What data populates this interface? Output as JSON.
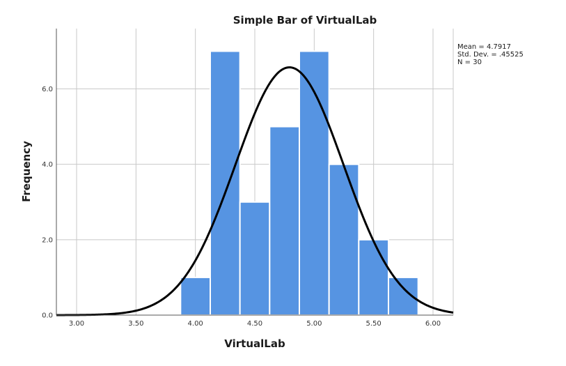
{
  "chart_data": {
    "type": "bar",
    "title": "Simple Bar of VirtualLab",
    "xlabel": "VirtualLab",
    "ylabel": "Frequency",
    "xlim": [
      2.83,
      6.17
    ],
    "ylim": [
      0,
      7.6
    ],
    "x_ticks": [
      "3.00",
      "3.50",
      "4.00",
      "4.50",
      "5.00",
      "5.50",
      "6.00"
    ],
    "y_ticks": [
      "0.0",
      "2.0",
      "4.0",
      "6.0"
    ],
    "bin_width": 0.25,
    "bins": [
      {
        "center": 4.0,
        "count": 1
      },
      {
        "center": 4.25,
        "count": 7
      },
      {
        "center": 4.5,
        "count": 3
      },
      {
        "center": 4.75,
        "count": 5
      },
      {
        "center": 5.0,
        "count": 7
      },
      {
        "center": 5.25,
        "count": 4
      },
      {
        "center": 5.5,
        "count": 2
      },
      {
        "center": 5.75,
        "count": 1
      }
    ],
    "normal_curve": {
      "mean": 4.7917,
      "sd": 0.45525,
      "n": 30
    },
    "grid": true,
    "stats_lines": [
      "Mean = 4.7917",
      "Std. Dev. = .45525",
      "N = 30"
    ],
    "colors": {
      "bar": "#5694e2",
      "bar_edge": "#ffffff",
      "curve": "#000000",
      "grid": "#c8c8c8"
    }
  }
}
